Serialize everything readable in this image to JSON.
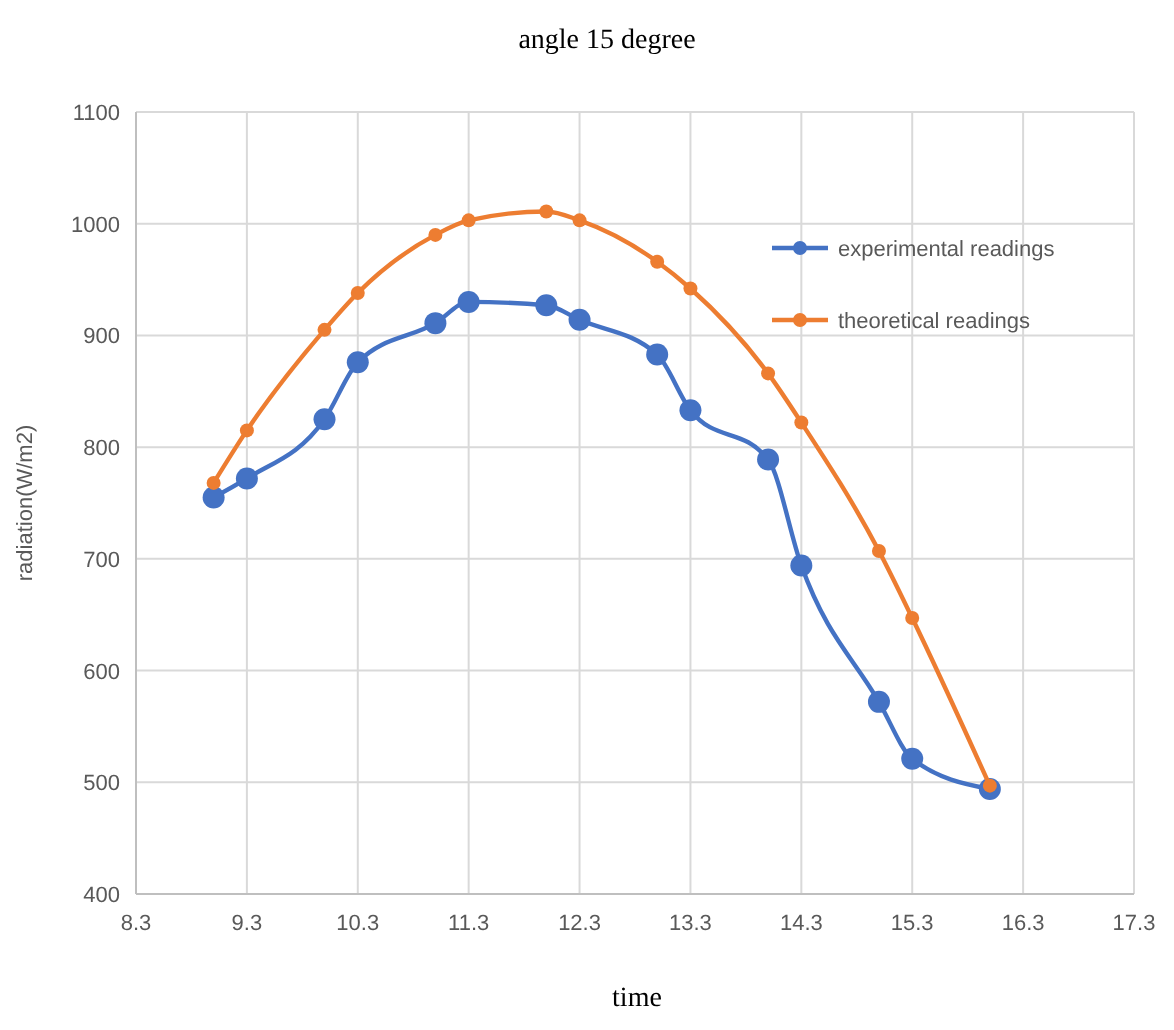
{
  "chart_data": {
    "type": "line",
    "title": "angle 15 degree",
    "xlabel": "time",
    "ylabel": "radiation(W/m2)",
    "x": [
      9.0,
      9.3,
      10.0,
      10.3,
      11.0,
      11.3,
      12.0,
      12.3,
      13.0,
      13.3,
      14.0,
      14.3,
      15.0,
      15.3,
      16.0
    ],
    "series": [
      {
        "name": "experimental readings",
        "color": "#4472c4",
        "values": [
          755,
          772,
          825,
          876,
          911,
          930,
          927,
          914,
          883,
          833,
          789,
          694,
          572,
          521,
          494
        ]
      },
      {
        "name": "theoretical readings",
        "color": "#ed7d31",
        "values": [
          768,
          815,
          905,
          938,
          990,
          1003,
          1011,
          1003,
          966,
          942,
          866,
          822,
          707,
          647,
          497
        ]
      }
    ],
    "xlim": [
      8.3,
      17.3
    ],
    "xticks": [
      8.3,
      9.3,
      10.3,
      11.3,
      12.3,
      13.3,
      14.3,
      15.3,
      16.3,
      17.3
    ],
    "ylim": [
      400,
      1100
    ],
    "yticks": [
      400,
      500,
      600,
      700,
      800,
      900,
      1000,
      1100
    ],
    "grid": true,
    "legend": "right",
    "marker": "circle",
    "line_style": "solid"
  }
}
